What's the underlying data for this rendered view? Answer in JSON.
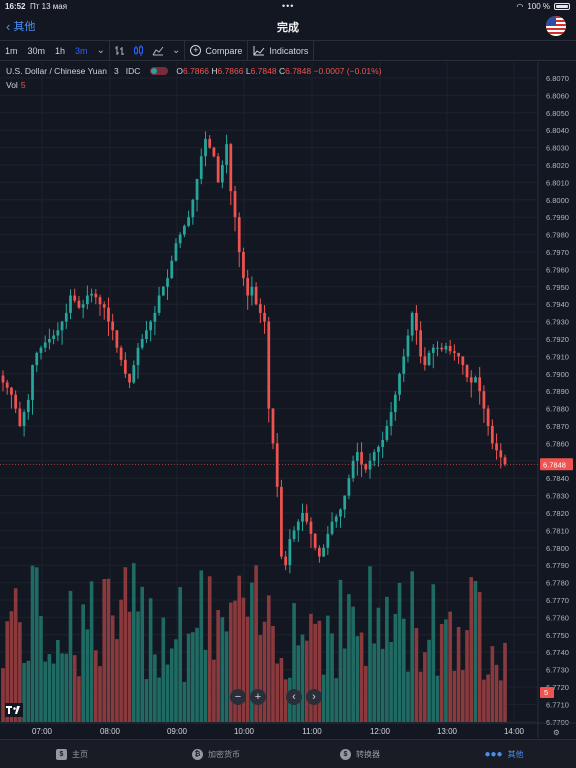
{
  "status": {
    "time": "16:52",
    "date": "Пт 13 мая",
    "battery": "100 %"
  },
  "nav": {
    "back_label": "其他",
    "title": "完成"
  },
  "toolbar": {
    "intervals": [
      "1m",
      "30m",
      "1h",
      "3m"
    ],
    "active_interval": "3m",
    "compare_label": "Compare",
    "indicators_label": "Indicators"
  },
  "legend": {
    "symbol": "U.S. Dollar / Chinese Yuan",
    "interval": "3",
    "source": "IDC",
    "open_label": "O",
    "open": "6.7866",
    "high_label": "H",
    "high": "6.7866",
    "low_label": "L",
    "low": "6.7848",
    "close_label": "C",
    "close": "6.7848",
    "change": "−0.0007 (−0.01%)",
    "vol_label": "Vol",
    "vol_value": "5"
  },
  "colors": {
    "up": "#26a69a",
    "down": "#ef5350",
    "background": "#131722",
    "grid": "#1e222d",
    "accent": "#2962ff"
  },
  "chart_data": {
    "type": "candlestick",
    "price_axis": {
      "min": 6.77,
      "max": 6.807,
      "step": 0.001
    },
    "price_ticks": [
      "6.8070",
      "6.8060",
      "6.8050",
      "6.8040",
      "6.8030",
      "6.8020",
      "6.8010",
      "6.8000",
      "6.7990",
      "6.7980",
      "6.7970",
      "6.7960",
      "6.7950",
      "6.7940",
      "6.7930",
      "6.7920",
      "6.7910",
      "6.7900",
      "6.7890",
      "6.7880",
      "6.7870",
      "6.7860",
      "6.7850",
      "6.7840",
      "6.7830",
      "6.7820",
      "6.7810",
      "6.7800",
      "6.7790",
      "6.7780",
      "6.7770",
      "6.7760",
      "6.7750",
      "6.7740",
      "6.7730",
      "6.7720",
      "6.7710",
      "6.7700"
    ],
    "time_ticks": [
      "07:00",
      "08:00",
      "09:00",
      "10:00",
      "11:00",
      "12:00",
      "13:00",
      "14:00"
    ],
    "last_price": "6.7848",
    "last_volume": "5",
    "candles_close": [
      6.7895,
      6.7892,
      6.7888,
      6.788,
      6.787,
      6.7878,
      6.7885,
      6.7905,
      6.7912,
      6.7915,
      6.7918,
      6.792,
      6.7922,
      6.7925,
      6.793,
      6.7935,
      6.7945,
      6.7942,
      6.7938,
      6.794,
      6.7945,
      6.7946,
      6.7944,
      6.794,
      6.7938,
      6.793,
      6.7925,
      6.7915,
      6.7908,
      6.79,
      6.7895,
      6.7905,
      6.7915,
      6.792,
      6.7925,
      6.793,
      6.7935,
      6.7945,
      6.795,
      6.7955,
      6.7965,
      6.7975,
      6.798,
      6.7985,
      6.799,
      6.8,
      6.8012,
      6.8025,
      6.8035,
      6.803,
      6.8025,
      6.801,
      6.802,
      6.8032,
      6.8005,
      6.799,
      6.797,
      6.7955,
      6.7945,
      6.795,
      6.794,
      6.7935,
      6.793,
      6.788,
      6.786,
      6.7835,
      6.7795,
      6.779,
      6.7805,
      6.781,
      6.7815,
      6.782,
      6.7815,
      6.7808,
      6.78,
      6.7795,
      6.78,
      6.7808,
      6.7815,
      6.7818,
      6.7822,
      6.783,
      6.784,
      6.785,
      6.7855,
      6.7848,
      6.7845,
      6.785,
      6.7855,
      6.7858,
      6.7862,
      6.787,
      6.7878,
      6.7888,
      6.79,
      6.791,
      6.7922,
      6.7935,
      6.7925,
      6.791,
      6.7905,
      6.7912,
      6.7915,
      6.7915,
      6.7914,
      6.7916,
      6.7913,
      6.7912,
      6.791,
      6.7905,
      6.7898,
      6.7895,
      6.7898,
      6.789,
      6.788,
      6.787,
      6.786,
      6.7856,
      6.7852,
      6.7848
    ],
    "volume_axis": {
      "min": 0,
      "max": 10
    }
  },
  "tabs": [
    {
      "label": "主页",
      "icon": "home-icon"
    },
    {
      "label": "加密货币",
      "icon": "bitcoin-icon"
    },
    {
      "label": "转换器",
      "icon": "converter-icon"
    },
    {
      "label": "其他",
      "icon": "more-icon"
    }
  ]
}
